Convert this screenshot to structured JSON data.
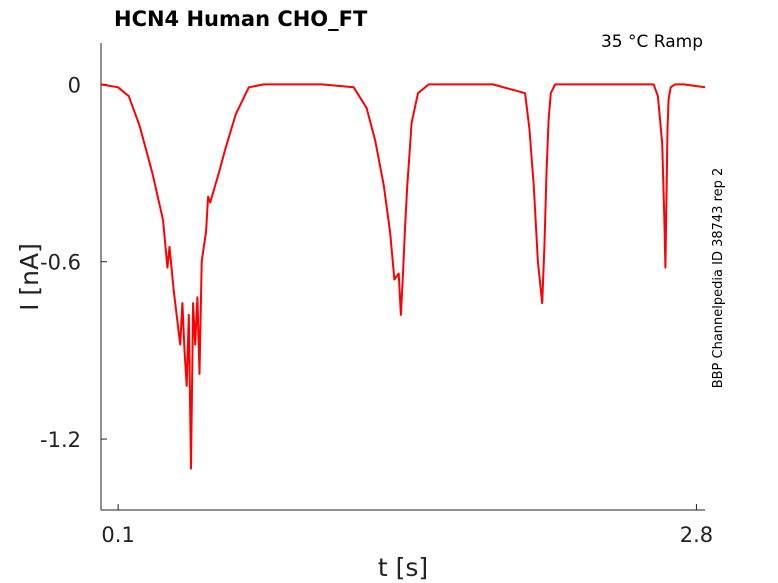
{
  "chart_data": {
    "type": "line",
    "title": "HCN4  Human  CHO_FT",
    "annotation": "35 °C  Ramp",
    "side_note": "BBP Channelpedia ID 38743 rep 2",
    "xlabel": "t [s]",
    "ylabel": "I [nA]",
    "xlim": [
      0.02,
      2.84
    ],
    "ylim": [
      -1.44,
      0.14
    ],
    "x_ticks": [
      0.1,
      2.8
    ],
    "x_tick_labels": [
      "0.1",
      "2.8"
    ],
    "y_ticks": [
      0,
      -0.6,
      -1.2
    ],
    "y_tick_labels": [
      "0",
      "-0.6",
      "-1.2"
    ],
    "grid": false,
    "series": [
      {
        "color": "#ff0000",
        "x": [
          0.02,
          0.1,
          0.15,
          0.2,
          0.26,
          0.31,
          0.33,
          0.34,
          0.36,
          0.39,
          0.4,
          0.41,
          0.42,
          0.43,
          0.44,
          0.45,
          0.46,
          0.47,
          0.48,
          0.49,
          0.5,
          0.51,
          0.52,
          0.53,
          0.55,
          0.57,
          0.6,
          0.65,
          0.71,
          0.78,
          0.84,
          0.88,
          1.05,
          1.2,
          1.26,
          1.3,
          1.34,
          1.37,
          1.39,
          1.41,
          1.42,
          1.43,
          1.44,
          1.45,
          1.46,
          1.47,
          1.5,
          1.55,
          1.62,
          1.66,
          1.7,
          1.85,
          2.0,
          2.02,
          2.04,
          2.06,
          2.08,
          2.09,
          2.1,
          2.11,
          2.12,
          2.14,
          2.16,
          2.2,
          2.4,
          2.6,
          2.62,
          2.64,
          2.65,
          2.655,
          2.66,
          2.665,
          2.67,
          2.68,
          2.7,
          2.74,
          2.84
        ],
        "y": [
          0.0,
          -0.01,
          -0.04,
          -0.14,
          -0.3,
          -0.46,
          -0.62,
          -0.55,
          -0.7,
          -0.88,
          -0.74,
          -0.9,
          -1.02,
          -0.78,
          -1.3,
          -0.74,
          -0.88,
          -0.72,
          -0.98,
          -0.6,
          -0.55,
          -0.5,
          -0.38,
          -0.4,
          -0.35,
          -0.3,
          -0.22,
          -0.1,
          -0.01,
          0.0,
          0.0,
          0.0,
          0.0,
          -0.01,
          -0.08,
          -0.19,
          -0.34,
          -0.5,
          -0.66,
          -0.64,
          -0.78,
          -0.64,
          -0.48,
          -0.34,
          -0.24,
          -0.13,
          -0.03,
          0.0,
          0.0,
          0.0,
          0.0,
          0.0,
          -0.03,
          -0.15,
          -0.34,
          -0.6,
          -0.74,
          -0.55,
          -0.3,
          -0.12,
          -0.03,
          0.0,
          0.0,
          0.0,
          0.0,
          0.0,
          -0.04,
          -0.2,
          -0.45,
          -0.62,
          -0.4,
          -0.15,
          -0.05,
          -0.01,
          0.0,
          0.0,
          -0.01
        ]
      }
    ]
  }
}
